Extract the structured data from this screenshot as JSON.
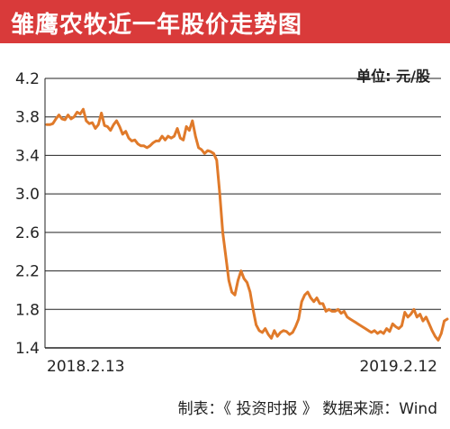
{
  "header": {
    "title": "雏鹰农牧近一年股价走势图"
  },
  "footer": {
    "text": "制表：《 投资时报 》  数据来源：Wind"
  },
  "colors": {
    "title_bar": "#d93a3a",
    "line": "#e07a2a",
    "grid": "#222222",
    "text": "#222222"
  },
  "chart_data": {
    "type": "line",
    "title": "雏鹰农牧近一年股价走势图",
    "unit_label": "单位: 元/股",
    "xlabel": "",
    "ylabel": "",
    "x_tick_labels": [
      "2018.2.13",
      "2019.2.12"
    ],
    "y_ticks": [
      1.4,
      1.8,
      2.2,
      2.6,
      3.0,
      3.4,
      3.8,
      4.2
    ],
    "y_tick_labels": [
      "1.4",
      "1.8",
      "2.2",
      "2.6",
      "3.0",
      "3.4",
      "3.8",
      "4.2"
    ],
    "ylim": [
      1.4,
      4.2
    ],
    "grid": true,
    "legend": "none",
    "series": [
      {
        "values": [
          3.72,
          3.72,
          3.73,
          3.78,
          3.82,
          3.78,
          3.77,
          3.82,
          3.78,
          3.8,
          3.85,
          3.83,
          3.88,
          3.76,
          3.73,
          3.74,
          3.68,
          3.72,
          3.84,
          3.71,
          3.7,
          3.66,
          3.72,
          3.76,
          3.7,
          3.62,
          3.65,
          3.58,
          3.55,
          3.56,
          3.52,
          3.5,
          3.5,
          3.48,
          3.5,
          3.53,
          3.55,
          3.55,
          3.6,
          3.56,
          3.6,
          3.58,
          3.6,
          3.68,
          3.58,
          3.56,
          3.7,
          3.66,
          3.76,
          3.6,
          3.48,
          3.46,
          3.42,
          3.45,
          3.44,
          3.42,
          3.35,
          3.0,
          2.6,
          2.35,
          2.1,
          1.98,
          1.95,
          2.1,
          2.2,
          2.12,
          2.08,
          1.98,
          1.8,
          1.64,
          1.58,
          1.56,
          1.6,
          1.54,
          1.5,
          1.58,
          1.52,
          1.56,
          1.58,
          1.57,
          1.54,
          1.56,
          1.62,
          1.7,
          1.88,
          1.95,
          1.98,
          1.92,
          1.88,
          1.92,
          1.86,
          1.86,
          1.78,
          1.8,
          1.78,
          1.78,
          1.8,
          1.76,
          1.78,
          1.72,
          1.7,
          1.68,
          1.66,
          1.64,
          1.62,
          1.6,
          1.58,
          1.56,
          1.58,
          1.55,
          1.57,
          1.55,
          1.6,
          1.57,
          1.65,
          1.62,
          1.6,
          1.63,
          1.77,
          1.72,
          1.75,
          1.8,
          1.72,
          1.75,
          1.68,
          1.72,
          1.65,
          1.58,
          1.52,
          1.48,
          1.55,
          1.68,
          1.7
        ]
      }
    ]
  }
}
